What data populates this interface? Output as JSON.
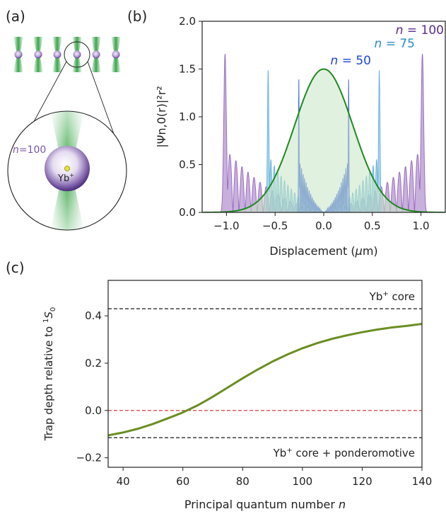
{
  "panel_labels": {
    "a": "(a)",
    "b": "(b)",
    "c": "(c)"
  },
  "illustration": {
    "zoom_label_n": "n",
    "zoom_label_value": "=100",
    "ion_label": "Yb",
    "ion_charge": "+",
    "colors": {
      "laser": "#3aa64a",
      "atom": "#7a5aa8",
      "ion": "#e6e23a"
    }
  },
  "chart_data": [
    {
      "panel": "b",
      "type": "line",
      "title": "",
      "xlabel_prefix": "Displacement (",
      "xlabel_mu": "μ",
      "xlabel_suffix": "m)",
      "ylabel": "|Ψn,0(r)|²r²",
      "xlim": [
        -1.25,
        1.25
      ],
      "ylim": [
        0,
        2.0
      ],
      "xticks": [
        -1.0,
        -0.5,
        0.0,
        0.5,
        1.0
      ],
      "xtick_labels": [
        "−1.0",
        "−0.5",
        "0.0",
        "0.5",
        "1.0"
      ],
      "yticks": [
        0.0,
        0.5,
        1.0,
        1.5,
        2.0
      ],
      "ytick_labels": [
        "0.0",
        "0.5",
        "1.0",
        "1.5",
        "2.0"
      ],
      "series": [
        {
          "name": "n = 100",
          "label_n": "n",
          "label_value": " = 100",
          "color": "#9a6fc0",
          "label_color": "#5b2c8c",
          "edge": 1.03,
          "peak": 1.66,
          "fill": true
        },
        {
          "name": "n = 75",
          "label_n": "n",
          "label_value": " = 75",
          "color": "#6ab4dc",
          "label_color": "#2b8cc4",
          "edge": 0.58,
          "peak": 1.5,
          "fill": true
        },
        {
          "name": "n = 50",
          "label_n": "n",
          "label_value": " = 50",
          "color": "#3f63e0",
          "label_color": "#1f45d6",
          "edge": 0.26,
          "peak": 1.41,
          "fill": true
        }
      ],
      "gaussian": {
        "amplitude": 1.5,
        "center": 0.0,
        "sigma": 0.3,
        "color": "#1e8a1e",
        "fill_color": "#c8e6c4"
      }
    },
    {
      "panel": "c",
      "type": "line",
      "title": "",
      "xlabel": "Principal quantum number n",
      "xlabel_text": "Principal quantum number ",
      "xlabel_n": "n",
      "ylabel": "Trap depth relative to 1S0",
      "ylabel_text": "Trap depth relative to ",
      "ylabel_sup": "1",
      "ylabel_S": "S",
      "ylabel_sub": "0",
      "xlim": [
        35,
        140
      ],
      "ylim": [
        -0.24,
        0.55
      ],
      "xticks": [
        40,
        60,
        80,
        100,
        120,
        140
      ],
      "xtick_labels": [
        "40",
        "60",
        "80",
        "100",
        "120",
        "140"
      ],
      "yticks": [
        -0.2,
        0.0,
        0.2,
        0.4
      ],
      "ytick_labels": [
        "−0.2",
        "0.0",
        "0.2",
        "0.4"
      ],
      "series": [
        {
          "name": "trap depth",
          "color": "#6b8e23",
          "x": [
            35,
            40,
            45,
            50,
            55,
            60,
            65,
            70,
            75,
            80,
            85,
            90,
            95,
            100,
            105,
            110,
            115,
            120,
            125,
            130,
            135,
            140
          ],
          "y": [
            -0.105,
            -0.093,
            -0.077,
            -0.057,
            -0.033,
            -0.008,
            0.022,
            0.058,
            0.097,
            0.136,
            0.173,
            0.207,
            0.237,
            0.263,
            0.285,
            0.303,
            0.318,
            0.331,
            0.342,
            0.351,
            0.358,
            0.366
          ]
        }
      ],
      "reference_lines": [
        {
          "y": 0.43,
          "color": "#000000",
          "label_main": "Yb",
          "label_sup": "+",
          "label_rest": " core"
        },
        {
          "y": 0.0,
          "color": "#d62728"
        },
        {
          "y": -0.115,
          "color": "#000000",
          "label_main": "Yb",
          "label_sup": "+",
          "label_rest": " core + ponderomotive"
        }
      ]
    }
  ]
}
